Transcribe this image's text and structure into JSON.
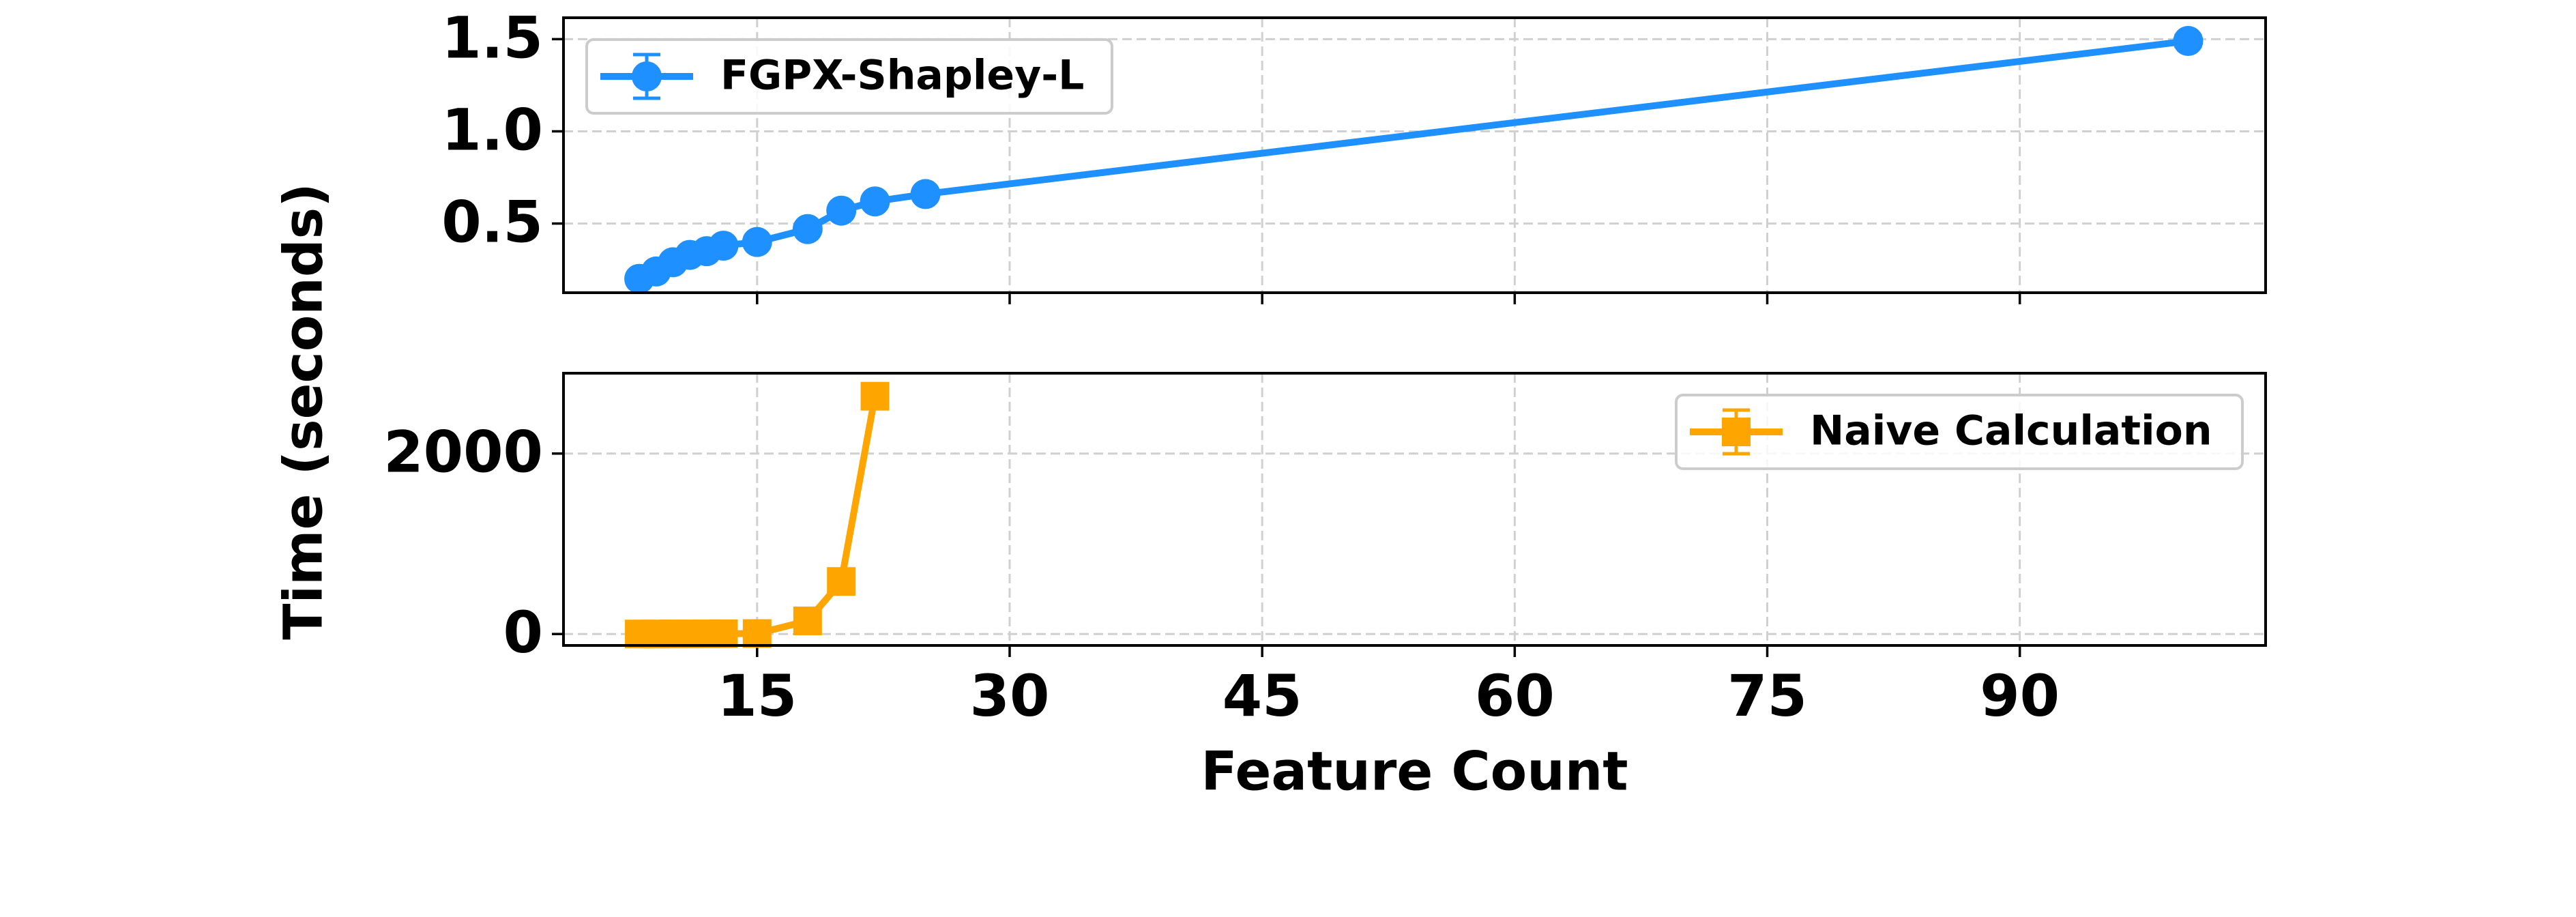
{
  "chart_data": [
    {
      "type": "line",
      "ylabel": "Time (seconds)",
      "x": [
        8,
        9,
        10,
        11,
        12,
        13,
        15,
        18,
        20,
        22,
        25,
        100
      ],
      "series": [
        {
          "name": "FGPX-Shapley-L",
          "color": "#1e90ff",
          "marker": "circle",
          "values": [
            0.2,
            0.24,
            0.29,
            0.33,
            0.35,
            0.38,
            0.4,
            0.47,
            0.57,
            0.62,
            0.66,
            1.49
          ],
          "errors": [
            0.02,
            0.02,
            0.02,
            0.02,
            0.02,
            0.02,
            0.02,
            0.02,
            0.02,
            0.02,
            0.02,
            0.03
          ]
        }
      ],
      "ylim": [
        0.125,
        1.616
      ],
      "yticks": [
        0.5,
        {
          "value": 1,
          "label": "1.0"
        },
        1.5
      ],
      "grid": true,
      "legend": "upper left"
    },
    {
      "type": "line",
      "xlabel": "Feature Count",
      "x": [
        8,
        9,
        10,
        11,
        12,
        13,
        15,
        18,
        20,
        22
      ],
      "series": [
        {
          "name": "Naive Calculation",
          "color": "#ffa500",
          "marker": "square",
          "values": [
            0,
            0,
            1,
            1,
            2,
            3,
            5,
            145,
            582,
            2636
          ],
          "errors": [
            10,
            10,
            10,
            10,
            10,
            10,
            10,
            20,
            30,
            40
          ]
        }
      ],
      "xlim": [
        3.5,
        104.6
      ],
      "xticks": [
        15,
        30,
        45,
        60,
        75,
        90
      ],
      "ylim": [
        -127,
        2891
      ],
      "yticks": [
        0,
        2000
      ],
      "grid": true,
      "legend": "upper right"
    }
  ]
}
